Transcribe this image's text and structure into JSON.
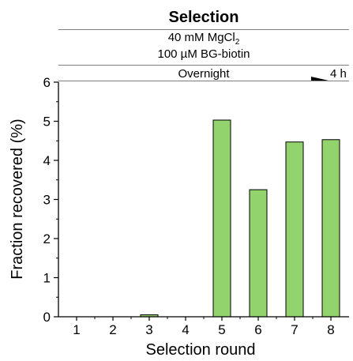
{
  "header": {
    "title": "Selection",
    "condition_1": "40 mM MgCl",
    "condition_1_sub": "2",
    "condition_2": "100 µM BG-biotin",
    "condition_3": "Overnight",
    "condition_3_end": "4 h"
  },
  "colors": {
    "bar_fill": "#92d36e",
    "bar_stroke": "#000000"
  },
  "chart_data": {
    "type": "bar",
    "categories": [
      "1",
      "2",
      "3",
      "4",
      "5",
      "6",
      "7",
      "8"
    ],
    "values": [
      0,
      0,
      0.05,
      0,
      5.03,
      3.25,
      4.47,
      4.53
    ],
    "xlabel": "Selection round",
    "ylabel": "Fraction recovered (%)",
    "ylim": [
      0,
      6
    ],
    "yticks": [
      "0",
      "1",
      "2",
      "3",
      "4",
      "5",
      "6"
    ],
    "grid": false,
    "legend": "none"
  }
}
